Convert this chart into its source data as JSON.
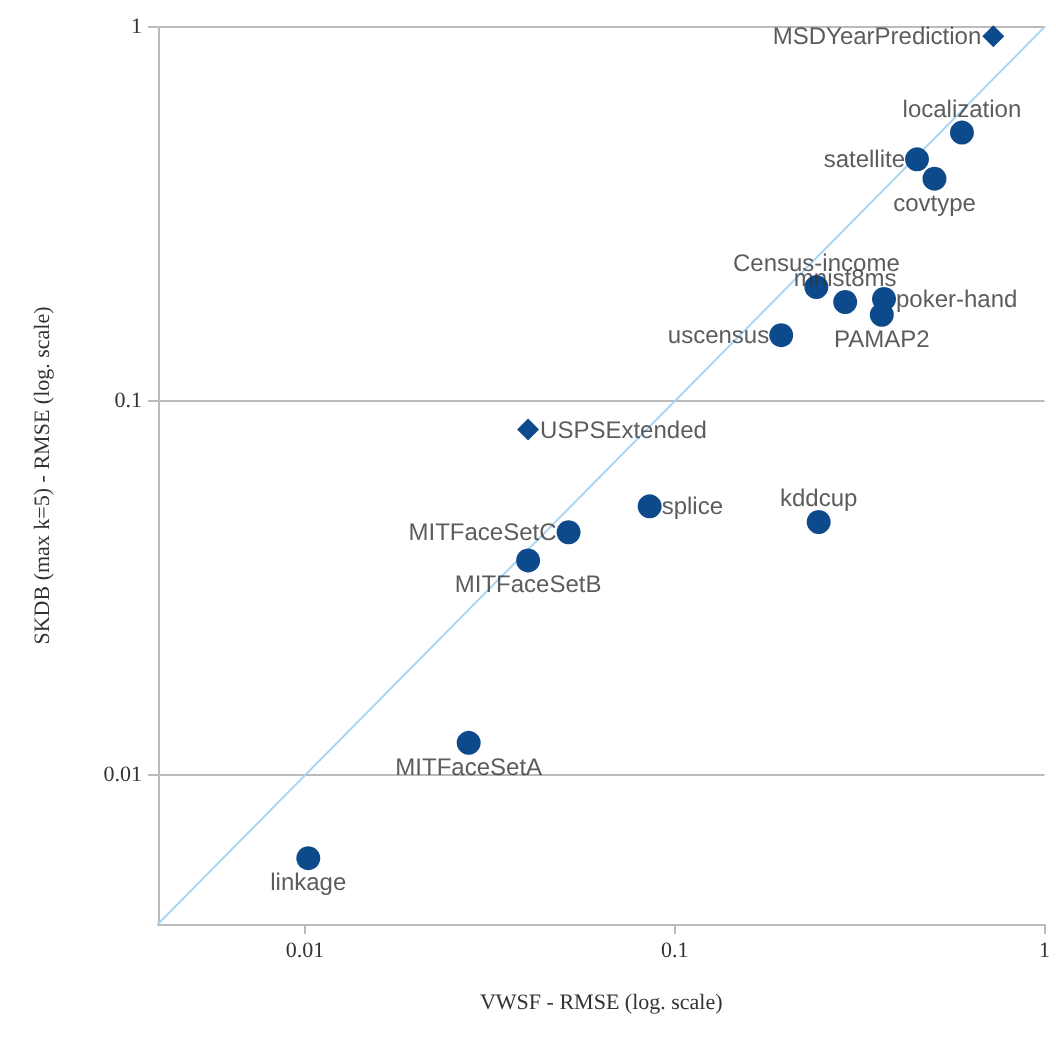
{
  "chart_data": {
    "type": "scatter",
    "xlabel": "VWSF - RMSE (log. scale)",
    "ylabel": "SKDB (max k=5) - RMSE (log. scale)",
    "log": "xy",
    "xlim": [
      0.004,
      1
    ],
    "ylim": [
      0.004,
      1
    ],
    "xticks": [
      0.01,
      0.1,
      1
    ],
    "yticks": [
      0.01,
      0.1,
      1
    ],
    "grid": "y",
    "series": [
      {
        "color": "#0d4a8b",
        "marker": "diamond",
        "x": [
          0.727,
          0.0401
        ],
        "values": [
          0.944,
          0.0839
        ]
      },
      {
        "color": "#0d4a8b",
        "marker": "circle",
        "x": [
          0.598,
          0.452,
          0.504,
          0.2415,
          0.289,
          0.368,
          0.363,
          0.194,
          0.0855,
          0.245,
          0.0516,
          0.0401,
          0.0277,
          0.0102
        ],
        "values": [
          0.522,
          0.443,
          0.393,
          0.2017,
          0.184,
          0.1875,
          0.17,
          0.15,
          0.0523,
          0.0475,
          0.0446,
          0.0375,
          0.0122,
          0.006
        ]
      },
      {
        "type": "line",
        "color": "#a8d4f4",
        "marker": "none",
        "x": [
          0.004,
          1
        ],
        "values": [
          0.004,
          1
        ]
      }
    ],
    "annotations": [
      {
        "text": "MSDYearPrediction",
        "x": 0.727,
        "y": 0.944
      },
      {
        "text": "localization",
        "x": 0.598,
        "y": 0.522
      },
      {
        "text": "satellite",
        "x": 0.452,
        "y": 0.443
      },
      {
        "text": "covtype",
        "x": 0.504,
        "y": 0.393
      },
      {
        "text": "Census-income",
        "x": 0.2415,
        "y": 0.2017
      },
      {
        "text": "mnist8ms",
        "x": 0.289,
        "y": 0.184
      },
      {
        "text": "poker-hand",
        "x": 0.368,
        "y": 0.1875
      },
      {
        "text": "PAMAP2",
        "x": 0.363,
        "y": 0.17
      },
      {
        "text": "uscensus",
        "x": 0.194,
        "y": 0.15
      },
      {
        "text": "USPSExtended",
        "x": 0.0401,
        "y": 0.0839
      },
      {
        "text": "splice",
        "x": 0.0855,
        "y": 0.0523
      },
      {
        "text": "kddcup",
        "x": 0.245,
        "y": 0.0475
      },
      {
        "text": "MITFaceSetC",
        "x": 0.0516,
        "y": 0.0446
      },
      {
        "text": "MITFaceSetB",
        "x": 0.0401,
        "y": 0.0375
      },
      {
        "text": "MITFaceSetA",
        "x": 0.0277,
        "y": 0.0122
      },
      {
        "text": "linkage",
        "x": 0.0102,
        "y": 0.006
      }
    ]
  }
}
